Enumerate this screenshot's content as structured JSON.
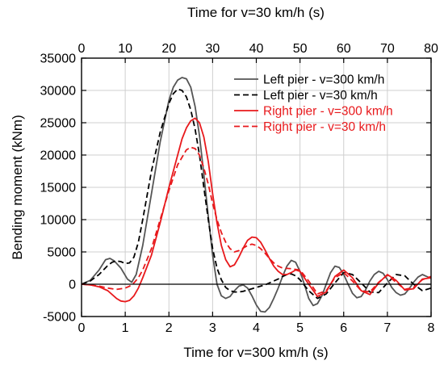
{
  "chart_data": {
    "type": "line",
    "xlabel": "Time for v=300 km/h (s)",
    "x2label": "Time for v=30 km/h (s)",
    "ylabel": "Bending moment (kNm)",
    "xlim": [
      0,
      8
    ],
    "x2lim": [
      0,
      80
    ],
    "ylim": [
      -5000,
      35000
    ],
    "xticks": [
      "0",
      "1",
      "2",
      "3",
      "4",
      "5",
      "6",
      "7",
      "8"
    ],
    "x2ticks": [
      "0",
      "10",
      "20",
      "30",
      "40",
      "50",
      "60",
      "70",
      "80"
    ],
    "yticks": [
      "-5000",
      "0",
      "5000",
      "10000",
      "15000",
      "20000",
      "25000",
      "30000",
      "35000"
    ],
    "grid": true,
    "legend_position": "top-right",
    "series": [
      {
        "name": "Left pier - v=300 km/h",
        "color": "#555555",
        "dash": "solid",
        "x": [
          0,
          0.2,
          0.4,
          0.55,
          0.65,
          0.75,
          0.9,
          1.05,
          1.15,
          1.25,
          1.4,
          1.6,
          1.8,
          2.0,
          2.1,
          2.2,
          2.3,
          2.4,
          2.5,
          2.6,
          2.7,
          2.8,
          2.9,
          3.0,
          3.1,
          3.2,
          3.3,
          3.4,
          3.5,
          3.6,
          3.7,
          3.8,
          3.9,
          4.0,
          4.1,
          4.2,
          4.3,
          4.4,
          4.5,
          4.6,
          4.7,
          4.8,
          4.9,
          5.0,
          5.1,
          5.2,
          5.3,
          5.4,
          5.5,
          5.6,
          5.7,
          5.8,
          5.9,
          6.0,
          6.1,
          6.2,
          6.3,
          6.4,
          6.5,
          6.6,
          6.7,
          6.8,
          6.9,
          7.0,
          7.1,
          7.2,
          7.3,
          7.4,
          7.5,
          7.6,
          7.7,
          7.8,
          7.9,
          8.0
        ],
        "values": [
          0,
          600,
          2200,
          3800,
          4000,
          3600,
          2500,
          800,
          300,
          1500,
          6000,
          14000,
          22000,
          28500,
          30500,
          31600,
          32000,
          31800,
          30500,
          27500,
          23000,
          17000,
          10500,
          4500,
          0,
          -1800,
          -2200,
          -1900,
          -1000,
          -300,
          -100,
          -600,
          -1800,
          -3200,
          -4200,
          -4300,
          -3600,
          -2200,
          -600,
          1200,
          2800,
          3700,
          3400,
          2000,
          0,
          -2200,
          -3300,
          -3000,
          -1800,
          0,
          1800,
          2800,
          2600,
          1500,
          0,
          -1400,
          -2100,
          -1900,
          -900,
          500,
          1500,
          2000,
          1700,
          700,
          -500,
          -1300,
          -1700,
          -1500,
          -700,
          300,
          1100,
          1500,
          1200,
          900
        ]
      },
      {
        "name": "Left pier - v=30 km/h",
        "color": "#000000",
        "dash": "dashed",
        "x": [
          0,
          0.2,
          0.4,
          0.6,
          0.7,
          0.8,
          0.9,
          1.0,
          1.1,
          1.2,
          1.3,
          1.4,
          1.6,
          1.8,
          2.0,
          2.1,
          2.2,
          2.3,
          2.4,
          2.5,
          2.6,
          2.7,
          2.8,
          2.9,
          3.0,
          3.1,
          3.2,
          3.3,
          3.4,
          3.5,
          3.6,
          3.7,
          3.8,
          3.9,
          4.0,
          4.1,
          4.2,
          4.3,
          4.4,
          4.5,
          4.6,
          4.7,
          4.8,
          4.9,
          5.0,
          5.2,
          5.4,
          5.6,
          5.8,
          6.0,
          6.2,
          6.4,
          6.6,
          6.8,
          7.0,
          7.2,
          7.4,
          7.6,
          7.8,
          8.0
        ],
        "values": [
          0,
          500,
          1500,
          2900,
          3400,
          3600,
          3500,
          3200,
          3300,
          4200,
          6500,
          10000,
          17500,
          23500,
          28000,
          29500,
          30200,
          30000,
          29000,
          27000,
          24000,
          20000,
          15000,
          10000,
          5500,
          2500,
          700,
          -500,
          -1000,
          -1200,
          -1200,
          -1100,
          -900,
          -700,
          -500,
          -300,
          -100,
          200,
          500,
          800,
          1200,
          1500,
          1600,
          1300,
          700,
          -1000,
          -2200,
          -1500,
          200,
          1800,
          1500,
          200,
          -1200,
          -1300,
          200,
          1500,
          1300,
          0,
          -1000,
          -600
        ]
      },
      {
        "name": "Right pier - v=300 km/h",
        "color": "#e8191c",
        "dash": "solid",
        "x": [
          0,
          0.2,
          0.4,
          0.6,
          0.8,
          0.9,
          1.0,
          1.1,
          1.2,
          1.3,
          1.4,
          1.6,
          1.8,
          2.0,
          2.2,
          2.3,
          2.4,
          2.5,
          2.6,
          2.7,
          2.8,
          2.9,
          3.0,
          3.1,
          3.2,
          3.3,
          3.4,
          3.5,
          3.6,
          3.7,
          3.8,
          3.9,
          4.0,
          4.1,
          4.2,
          4.3,
          4.4,
          4.5,
          4.6,
          4.7,
          4.8,
          4.9,
          5.0,
          5.2,
          5.4,
          5.6,
          5.8,
          6.0,
          6.2,
          6.4,
          6.6,
          6.8,
          7.0,
          7.2,
          7.4,
          7.6,
          7.8,
          8.0
        ],
        "values": [
          0,
          -100,
          -400,
          -1000,
          -2200,
          -2600,
          -2700,
          -2500,
          -1800,
          -600,
          1000,
          4500,
          9500,
          15000,
          20000,
          22500,
          24200,
          25300,
          25700,
          25000,
          22800,
          19000,
          14000,
          9500,
          6000,
          3800,
          2700,
          3000,
          4200,
          5600,
          6800,
          7300,
          7200,
          6500,
          5300,
          4000,
          2800,
          2000,
          1500,
          1500,
          1800,
          2200,
          2000,
          0,
          -1900,
          -1200,
          1200,
          2200,
          1000,
          -1000,
          -1600,
          200,
          1500,
          600,
          -900,
          -700,
          800,
          1000
        ]
      },
      {
        "name": "Right pier - v=30 km/h",
        "color": "#e8191c",
        "dash": "dashed",
        "x": [
          0,
          0.2,
          0.4,
          0.6,
          0.8,
          1.0,
          1.1,
          1.2,
          1.3,
          1.4,
          1.6,
          1.8,
          2.0,
          2.2,
          2.4,
          2.5,
          2.6,
          2.7,
          2.8,
          2.9,
          3.0,
          3.1,
          3.2,
          3.3,
          3.4,
          3.5,
          3.6,
          3.7,
          3.8,
          3.9,
          4.0,
          4.1,
          4.2,
          4.3,
          4.4,
          4.5,
          4.6,
          4.8,
          5.0,
          5.2,
          5.4,
          5.6,
          5.8,
          6.0,
          6.2,
          6.4,
          6.6,
          6.8,
          7.0,
          7.2,
          7.4,
          7.6,
          7.8,
          8.0
        ],
        "values": [
          0,
          -100,
          -300,
          -600,
          -800,
          -600,
          -300,
          200,
          1000,
          2200,
          5500,
          10000,
          14500,
          18500,
          20800,
          21200,
          21000,
          20000,
          18000,
          15500,
          12500,
          10000,
          8000,
          6500,
          5500,
          5000,
          5200,
          5600,
          6000,
          6200,
          6000,
          5500,
          4800,
          4000,
          3300,
          2800,
          2500,
          2400,
          2200,
          500,
          -1500,
          -1000,
          1000,
          1800,
          500,
          -1000,
          -1200,
          300,
          1400,
          300,
          -800,
          -500,
          700,
          1200
        ]
      }
    ]
  }
}
